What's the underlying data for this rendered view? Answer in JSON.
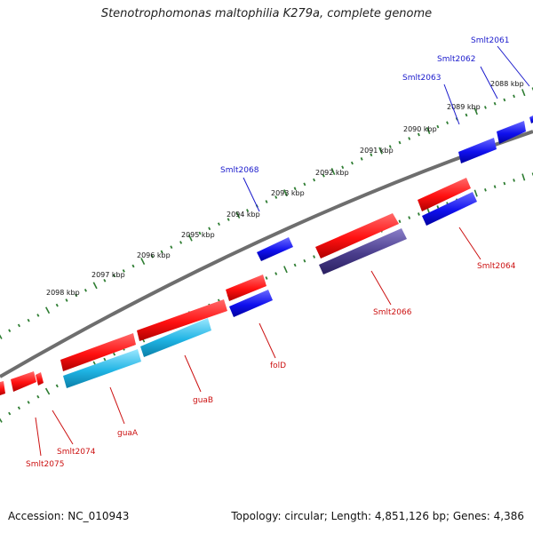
{
  "title": "Stenotrophomonas maltophilia K279a, complete genome",
  "footer": {
    "accession": "Accession: NC_010943",
    "summary": "Topology: circular; Length: 4,851,126 bp; Genes: 4,386"
  },
  "colors": {
    "backbone": "#7a7a7a",
    "tick": "#2e7d32",
    "forward_label": "#1a1acc",
    "reverse_label": "#cc1111",
    "red": "#ff1a1a",
    "blue": "#1a1aee",
    "cyan": "#22b8e6",
    "navy": "#4a3d8c"
  },
  "kbp_labels": [
    "2088 kbp",
    "2089 kbp",
    "2090 kbp",
    "2091 kbp",
    "2092 kbp",
    "2093 kbp",
    "2094 kbp",
    "2095 kbp",
    "2096 kbp",
    "2097 kbp",
    "2098 kbp"
  ],
  "forward_genes": [
    "Smlt2061",
    "Smlt2062",
    "Smlt2063",
    "Smlt2068"
  ],
  "reverse_genes": [
    "Smlt2064",
    "Smlt2066",
    "folD",
    "guaB",
    "guaA",
    "Smlt2074",
    "Smlt2075"
  ]
}
